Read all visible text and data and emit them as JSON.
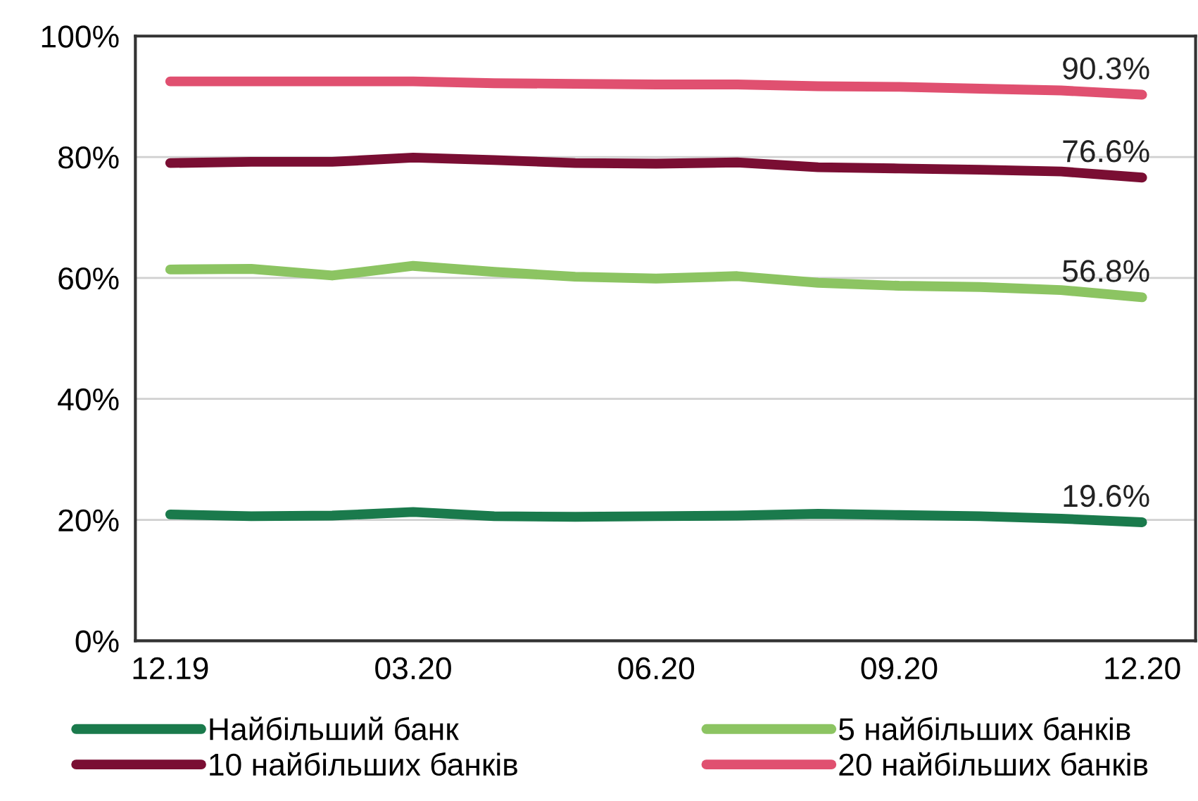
{
  "chart_data": {
    "type": "line",
    "categories": [
      "12.19",
      null,
      null,
      "03.20",
      null,
      null,
      "06.20",
      null,
      null,
      "09.20",
      null,
      null,
      "12.20"
    ],
    "ylim": [
      0,
      100
    ],
    "yticks": [
      {
        "value": 0,
        "label": "0%"
      },
      {
        "value": 20,
        "label": "20%"
      },
      {
        "value": 40,
        "label": "40%"
      },
      {
        "value": 60,
        "label": "60%"
      },
      {
        "value": 80,
        "label": "80%"
      },
      {
        "value": 100,
        "label": "100%"
      }
    ],
    "grid": "y",
    "legend": "bottom",
    "marker": "none",
    "line_style": "solid",
    "series": [
      {
        "name": "Найбільший банк",
        "color": "#1a7a4c",
        "values": [
          20.9,
          20.6,
          20.7,
          21.3,
          20.6,
          20.5,
          20.6,
          20.7,
          21.0,
          20.8,
          20.6,
          20.2,
          19.6
        ],
        "value_labels": [
          null,
          null,
          null,
          null,
          null,
          null,
          null,
          null,
          null,
          null,
          null,
          null,
          "19.6%"
        ]
      },
      {
        "name": "5 найбільших банків",
        "color": "#8cc462",
        "values": [
          61.4,
          61.5,
          60.4,
          62.0,
          61.0,
          60.2,
          59.9,
          60.3,
          59.2,
          58.7,
          58.5,
          58.0,
          56.8
        ],
        "value_labels": [
          null,
          null,
          null,
          null,
          null,
          null,
          null,
          null,
          null,
          null,
          null,
          null,
          "56.8%"
        ]
      },
      {
        "name": "10 найбільших банків",
        "color": "#7a0e33",
        "values": [
          79.0,
          79.2,
          79.2,
          79.9,
          79.5,
          79.0,
          78.9,
          79.1,
          78.3,
          78.1,
          77.9,
          77.6,
          76.6
        ],
        "value_labels": [
          null,
          null,
          null,
          null,
          null,
          null,
          null,
          null,
          null,
          null,
          null,
          null,
          "76.6%"
        ]
      },
      {
        "name": "20 найбільших банків",
        "color": "#e05070",
        "values": [
          92.5,
          92.5,
          92.5,
          92.5,
          92.2,
          92.1,
          92.0,
          92.0,
          91.7,
          91.6,
          91.3,
          91.0,
          90.3
        ],
        "value_labels": [
          null,
          null,
          null,
          null,
          null,
          null,
          null,
          null,
          null,
          null,
          null,
          null,
          "90.3%"
        ]
      }
    ]
  }
}
